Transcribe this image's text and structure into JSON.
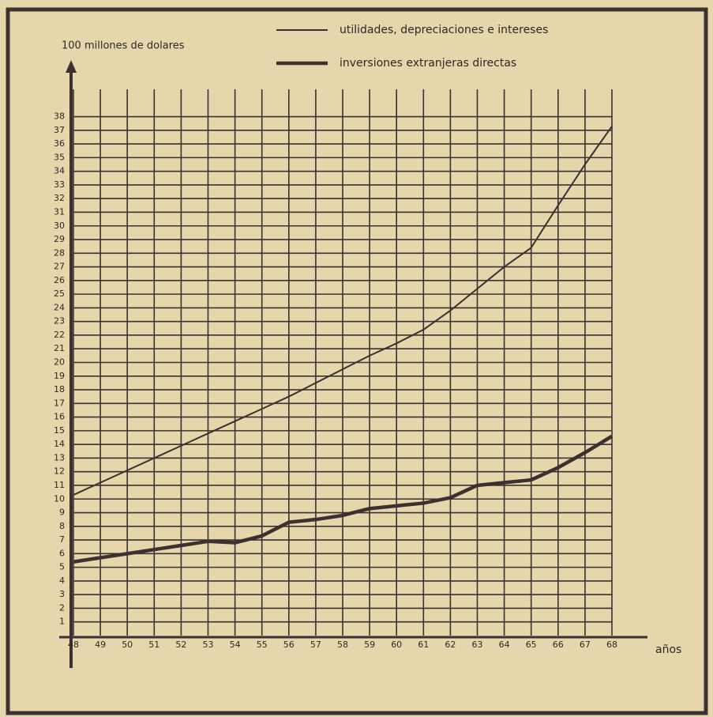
{
  "chart_data": {
    "type": "line",
    "y_label": "100 millones de dolares",
    "x_label": "años",
    "x": [
      48,
      49,
      50,
      51,
      52,
      53,
      54,
      55,
      56,
      57,
      58,
      59,
      60,
      61,
      62,
      63,
      64,
      65,
      66,
      67,
      68
    ],
    "series": [
      {
        "name": "utilidades, depreciaciones e intereses",
        "color": "#3b3130",
        "width": 2,
        "values": [
          10.3,
          11.2,
          12.1,
          13.0,
          13.9,
          14.8,
          15.7,
          16.6,
          17.5,
          18.5,
          19.5,
          20.5,
          21.4,
          22.4,
          23.8,
          25.4,
          27.0,
          28.4,
          31.5,
          34.5,
          37.3
        ]
      },
      {
        "name": "inversiones extranjeras directas",
        "color": "#3b3130",
        "width": 4.5,
        "values": [
          5.4,
          5.7,
          6.0,
          6.3,
          6.6,
          6.9,
          6.8,
          7.3,
          8.3,
          8.5,
          8.8,
          9.3,
          9.5,
          9.7,
          10.1,
          11.0,
          11.2,
          11.4,
          12.3,
          13.4,
          14.6
        ]
      }
    ],
    "xlim": [
      48,
      68
    ],
    "xticks": [
      48,
      49,
      50,
      51,
      52,
      53,
      54,
      55,
      56,
      57,
      58,
      59,
      60,
      61,
      62,
      63,
      64,
      65,
      66,
      67,
      68
    ],
    "ylim": [
      0,
      40
    ],
    "yticks": [
      1,
      2,
      3,
      4,
      5,
      6,
      7,
      8,
      9,
      10,
      11,
      12,
      13,
      14,
      15,
      16,
      17,
      18,
      19,
      20,
      21,
      22,
      23,
      24,
      25,
      26,
      27,
      28,
      29,
      30,
      31,
      32,
      33,
      34,
      35,
      36,
      37,
      38
    ],
    "grid": true
  }
}
